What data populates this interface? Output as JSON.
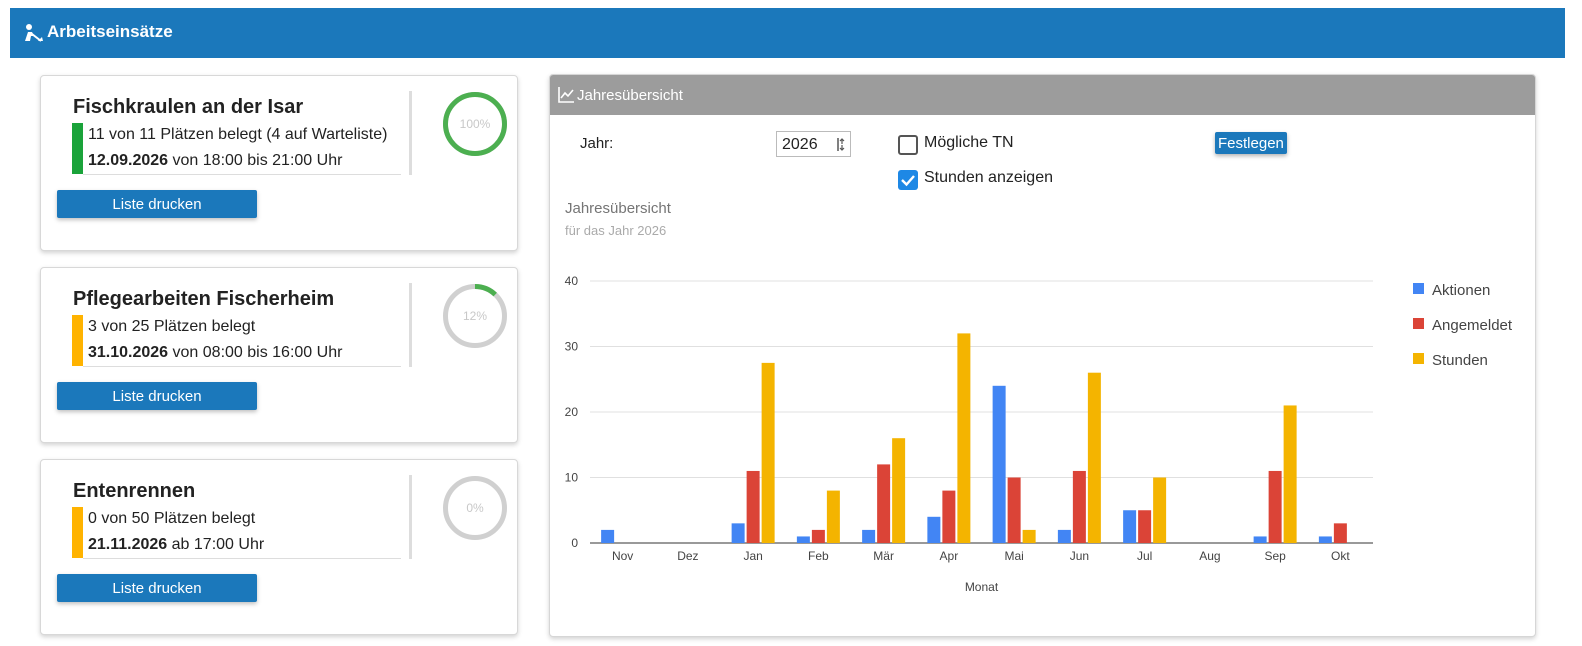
{
  "header": {
    "title": "Arbeitseinsätze",
    "icon": "worker-shovel-icon"
  },
  "cards": [
    {
      "title": "Fischkraulen an der Isar",
      "status_color": "#1aa33a",
      "line1": "11 von 11 Plätzen belegt (4 auf Warteliste)",
      "date": "12.09.2026",
      "time": "von 18:00 bis 21:00 Uhr",
      "percent": 100,
      "percent_label": "100%",
      "button": "Liste drucken"
    },
    {
      "title": "Pflegearbeiten Fischerheim",
      "status_color": "#ffb300",
      "line1": "3 von 25 Plätzen belegt",
      "date": "31.10.2026",
      "time": "von 08:00 bis 16:00 Uhr",
      "percent": 12,
      "percent_label": "12%",
      "button": "Liste drucken"
    },
    {
      "title": "Entenrennen",
      "status_color": "#ffb300",
      "line1": "0 von 50 Plätzen belegt",
      "date": "21.11.2026",
      "time": "ab 17:00 Uhr",
      "percent": 0,
      "percent_label": "0%",
      "button": "Liste drucken"
    }
  ],
  "panel": {
    "title": "Jahresübersicht",
    "year_label": "Jahr:",
    "year_value": "2026",
    "checkbox_tn": {
      "label": "Mögliche TN",
      "checked": false
    },
    "checkbox_hours": {
      "label": "Stunden anzeigen",
      "checked": true
    },
    "button": "Festlegen"
  },
  "chart_data": {
    "type": "bar",
    "title": "Jahresübersicht",
    "subtitle": "für das Jahr 2026",
    "xlabel": "Monat",
    "ylabel": "",
    "ylim": [
      0,
      40
    ],
    "yticks": [
      0,
      10,
      20,
      30,
      40
    ],
    "grid": true,
    "legend": "right",
    "categories": [
      "Nov",
      "Dez",
      "Jan",
      "Feb",
      "Mär",
      "Apr",
      "Mai",
      "Jun",
      "Jul",
      "Aug",
      "Sep",
      "Okt"
    ],
    "series": [
      {
        "name": "Aktionen",
        "color": "#4285f4",
        "values": [
          2,
          0,
          3,
          1,
          2,
          4,
          24,
          2,
          5,
          0,
          1,
          1
        ]
      },
      {
        "name": "Angemeldet",
        "color": "#db4437",
        "values": [
          0,
          0,
          11,
          2,
          12,
          8,
          10,
          11,
          5,
          0,
          11,
          3
        ]
      },
      {
        "name": "Stunden",
        "color": "#f4b400",
        "values": [
          0,
          0,
          27.5,
          8,
          16,
          32,
          2,
          26,
          10,
          0,
          21,
          0
        ]
      }
    ]
  }
}
